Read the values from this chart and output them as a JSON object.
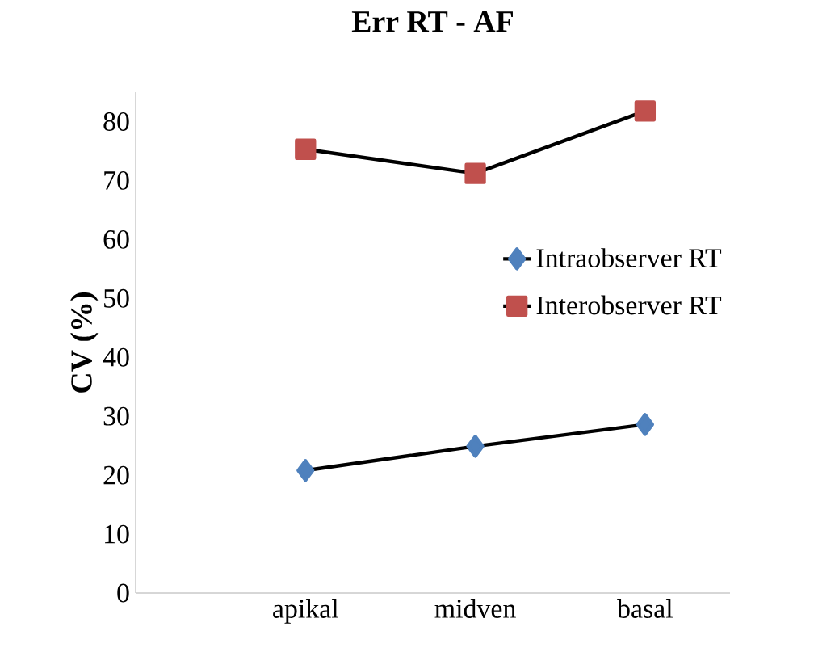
{
  "chart_data": {
    "type": "line",
    "title": "Err RT - AF",
    "ylabel": "CV (%)",
    "categories": [
      "apikal",
      "midven",
      "basal"
    ],
    "series": [
      {
        "name": "Intraobserver RT",
        "color": "#4f81bd",
        "marker": "diamond",
        "values": [
          20.8,
          24.9,
          28.6
        ]
      },
      {
        "name": "Interobserver RT",
        "color": "#c0504d",
        "marker": "square",
        "values": [
          75.3,
          71.2,
          81.8
        ]
      }
    ],
    "ylim": [
      0,
      85
    ],
    "yticks": [
      0,
      10,
      20,
      30,
      40,
      50,
      60,
      70,
      80
    ],
    "grid": false,
    "legend": "right"
  }
}
